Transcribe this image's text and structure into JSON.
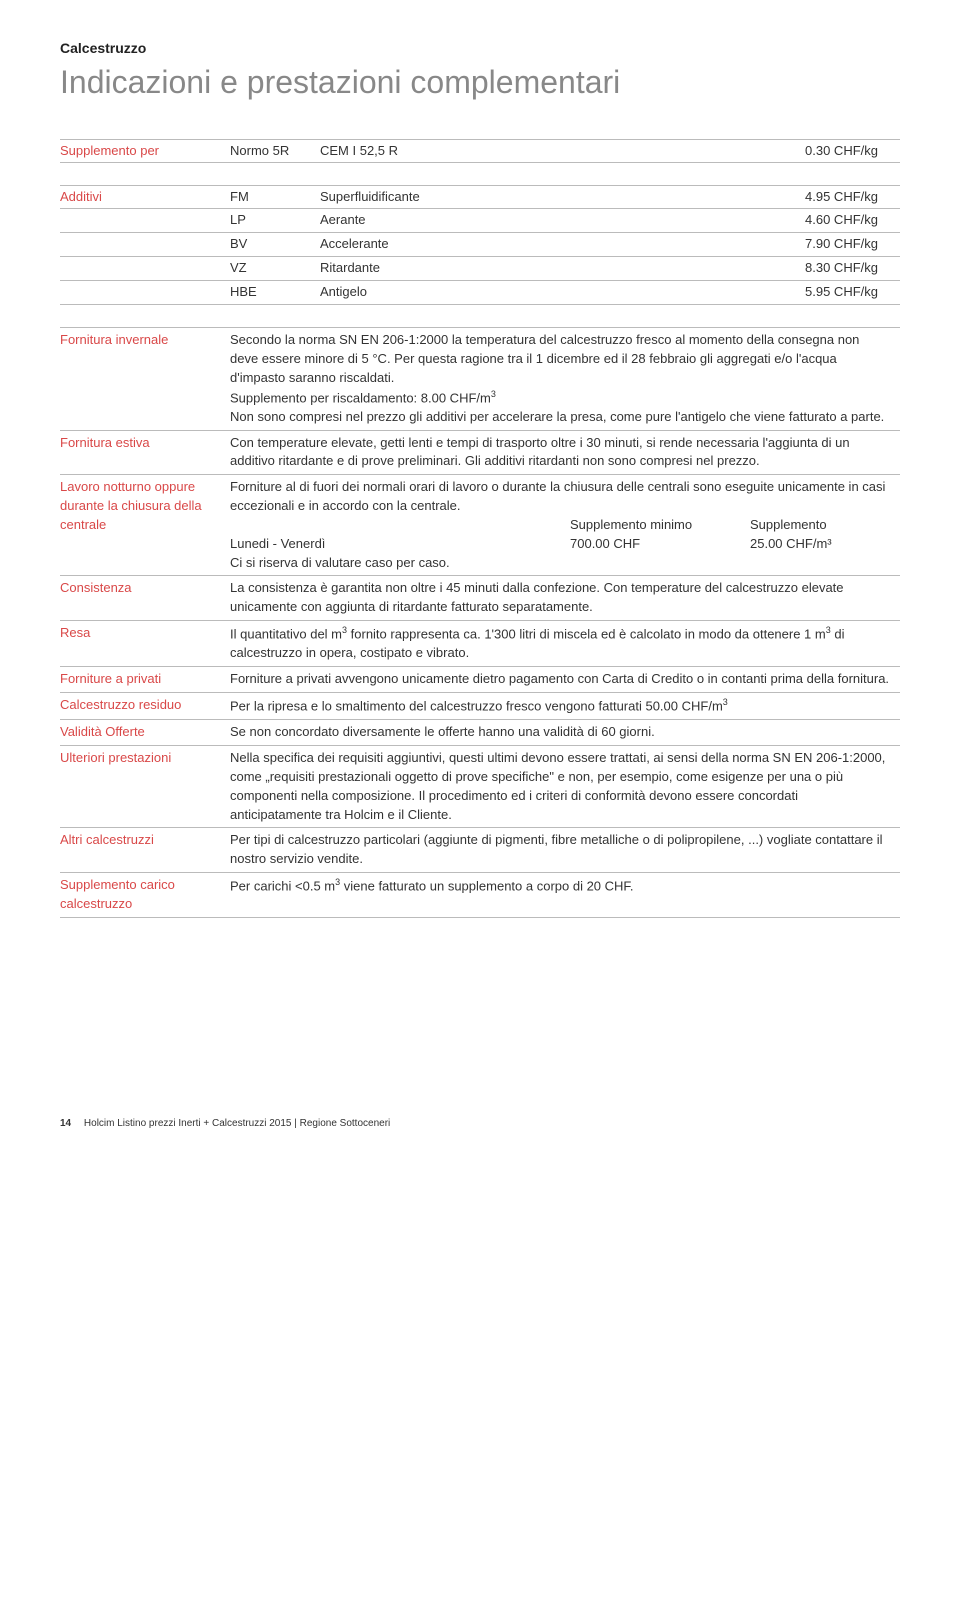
{
  "header": {
    "category": "Calcestruzzo",
    "title": "Indicazioni e prestazioni complementari"
  },
  "supplemento": {
    "label": "Supplemento per",
    "code": "Normo 5R",
    "desc": "CEM I 52,5 R",
    "value": "0.30 CHF/kg"
  },
  "additivi": {
    "label": "Additivi",
    "rows": [
      {
        "code": "FM",
        "desc": "Superfluidificante",
        "value": "4.95 CHF/kg"
      },
      {
        "code": "LP",
        "desc": "Aerante",
        "value": "4.60 CHF/kg"
      },
      {
        "code": "BV",
        "desc": "Accelerante",
        "value": "7.90 CHF/kg"
      },
      {
        "code": "VZ",
        "desc": "Ritardante",
        "value": "8.30 CHF/kg"
      },
      {
        "code": "HBE",
        "desc": "Antigelo",
        "value": "5.95 CHF/kg"
      }
    ]
  },
  "info": [
    {
      "label": "Fornitura invernale",
      "text": "Secondo la norma SN EN 206-1:2000 la temperatura del calcestruzzo fresco al momento della consegna non deve essere minore di 5 °C. Per questa ragione tra il 1 dicembre ed il 28 febbraio gli aggregati e/o l'acqua d'impasto saranno riscaldati.<br>Supplemento per riscaldamento: 8.00 CHF/m<span class=\"sup\">3</span><br>Non sono compresi nel prezzo gli additivi per accelerare la presa, come pure l'antigelo che viene fatturato a parte."
    },
    {
      "label": "Fornitura estiva",
      "text": "Con temperature elevate, getti lenti e tempi di trasporto oltre i 30 minuti, si rende necessaria l'aggiunta di un additivo ritardante e di prove preliminari. Gli additivi ritardanti non sono compresi nel prezzo."
    },
    {
      "label": "Lavoro notturno oppure durante la chiusura della centrale",
      "text": "Forniture al di fuori dei normali orari di lavoro o durante la chiusura delle centrali sono eseguite unicamente in casi eccezionali e in accordo con la centrale.",
      "schedule": {
        "head_mid": "Supplemento minimo",
        "head_right": "Supplemento",
        "row_left": "Lunedi - Venerdì",
        "row_mid": "700.00 CHF",
        "row_right": "25.00 CHF/m³",
        "note": "Ci si riserva di valutare caso per caso."
      }
    },
    {
      "label": "Consistenza",
      "text": "La consistenza è garantita non oltre i 45 minuti dalla confezione. Con temperature del calcestruzzo elevate unicamente con aggiunta di ritardante fatturato separatamente."
    },
    {
      "label": "Resa",
      "text": "Il quantitativo del m<span class=\"sup\">3</span> fornito rappresenta ca. 1'300 litri di miscela ed è calcolato in modo da ottenere 1 m<span class=\"sup\">3</span> di calcestruzzo in opera, costipato e vibrato."
    },
    {
      "label": "Forniture a privati",
      "text": "Forniture a privati avvengono unicamente dietro pagamento con Carta di Credito o in contanti prima della fornitura."
    },
    {
      "label": "Calcestruzzo residuo",
      "text": "Per la ripresa e lo smaltimento del calcestruzzo fresco vengono fatturati 50.00 CHF/m<span class=\"sup\">3</span>"
    },
    {
      "label": "Validità Offerte",
      "text": "Se non concordato diversamente le offerte hanno una validità di 60 giorni."
    },
    {
      "label": "Ulteriori prestazioni",
      "text": "Nella specifica dei requisiti aggiuntivi, questi ultimi devono essere trattati, ai sensi della norma SN EN 206-1:2000, come „requisiti prestazionali oggetto di prove specifiche\" e non, per esempio, come esigenze per una o più componenti nella composizione. Il procedimento ed i criteri di conformità devono essere concordati anticipatamente tra Holcim e il Cliente."
    },
    {
      "label": "Altri calcestruzzi",
      "text": "Per tipi di calcestruzzo particolari (aggiunte di pigmenti, fibre metalliche o di polipropilene, ...) vogliate contattare il nostro servizio vendite."
    },
    {
      "label": "Supplemento carico calcestruzzo",
      "text": "Per carichi <0.5 m<span class=\"sup\">3</span> viene fatturato un supplemento a corpo di 20 CHF."
    }
  ],
  "footer": {
    "page": "14",
    "text": "Holcim Listino prezzi Inerti + Calcestruzzi 2015 | Regione Sottoceneri"
  },
  "colors": {
    "accent": "#d94848",
    "text": "#333333",
    "title_grey": "#888888",
    "rule": "#bbbbbb",
    "bg": "#ffffff"
  }
}
